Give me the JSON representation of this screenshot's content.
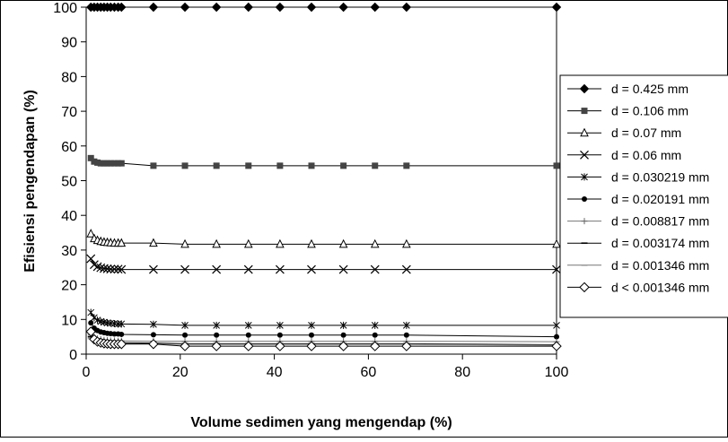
{
  "chart_data": {
    "type": "line",
    "title": "",
    "xlabel": "Volume sedimen yang mengendap (%)",
    "ylabel": "Efisiensi pengendapan (%)",
    "xlim": [
      0,
      100
    ],
    "ylim": [
      0,
      100
    ],
    "xticks": [
      "0",
      "20",
      "40",
      "60",
      "80",
      "100"
    ],
    "yticks": [
      "0",
      "10",
      "20",
      "30",
      "40",
      "50",
      "60",
      "70",
      "80",
      "90",
      "100"
    ],
    "grid": false,
    "legend_position": "right",
    "x": [
      1,
      1.7,
      2.4,
      3.1,
      3.8,
      4.5,
      5.2,
      6.0,
      6.8,
      7.5,
      14.3,
      21.0,
      27.7,
      34.5,
      41.2,
      47.9,
      54.7,
      61.4,
      68.1,
      100
    ],
    "series": [
      {
        "name": "d = 0.425 mm",
        "marker": "diamond-filled",
        "values": [
          100,
          100,
          100,
          100,
          100,
          100,
          100,
          100,
          100,
          100,
          100,
          100,
          100,
          100,
          100,
          100,
          100,
          100,
          100,
          100
        ]
      },
      {
        "name": "d = 0.106 mm",
        "marker": "square-filled",
        "values": [
          56.5,
          55.5,
          55.2,
          55.0,
          55.0,
          55.0,
          55.0,
          55.0,
          55.0,
          55.0,
          54.3,
          54.3,
          54.3,
          54.3,
          54.3,
          54.3,
          54.3,
          54.3,
          54.3,
          54.3
        ]
      },
      {
        "name": "d = 0.07 mm",
        "marker": "triangle-open",
        "values": [
          34.7,
          33.3,
          32.8,
          32.5,
          32.3,
          32.2,
          32.1,
          32.0,
          32.0,
          32.0,
          32.0,
          31.7,
          31.7,
          31.7,
          31.7,
          31.7,
          31.7,
          31.7,
          31.7,
          31.7
        ]
      },
      {
        "name": "d = 0.06 mm",
        "marker": "x",
        "values": [
          27.5,
          25.8,
          25.2,
          24.9,
          24.7,
          24.6,
          24.5,
          24.5,
          24.5,
          24.4,
          24.4,
          24.4,
          24.4,
          24.4,
          24.4,
          24.4,
          24.4,
          24.4,
          24.4,
          24.4
        ]
      },
      {
        "name": "d = 0.030219 mm",
        "marker": "star",
        "values": [
          12.0,
          10.5,
          9.8,
          9.4,
          9.2,
          9.0,
          8.9,
          8.8,
          8.7,
          8.7,
          8.6,
          8.3,
          8.3,
          8.3,
          8.3,
          8.3,
          8.3,
          8.3,
          8.3,
          8.3
        ]
      },
      {
        "name": "d = 0.020191 mm",
        "marker": "circle-filled",
        "values": [
          9.0,
          7.5,
          6.8,
          6.4,
          6.2,
          6.0,
          5.9,
          5.8,
          5.8,
          5.7,
          5.6,
          5.5,
          5.5,
          5.5,
          5.5,
          5.5,
          5.5,
          5.5,
          5.5,
          5.0
        ]
      },
      {
        "name": "d = 0.008817 mm",
        "marker": "plus",
        "values": [
          5.5,
          4.8,
          4.5,
          4.3,
          4.1,
          4.0,
          3.9,
          3.9,
          3.8,
          3.8,
          3.7,
          3.7,
          3.7,
          3.7,
          3.7,
          3.7,
          3.7,
          3.7,
          3.7,
          3.6
        ]
      },
      {
        "name": "d = 0.003174 mm",
        "marker": "dash",
        "values": [
          5.0,
          4.3,
          4.0,
          3.8,
          3.6,
          3.5,
          3.4,
          3.4,
          3.3,
          3.3,
          3.2,
          3.0,
          3.0,
          3.0,
          3.0,
          3.0,
          3.0,
          3.0,
          3.0,
          2.7
        ]
      },
      {
        "name": "d = 0.001346 mm",
        "marker": "dash-gray",
        "values": [
          4.5,
          3.9,
          3.6,
          3.4,
          3.3,
          3.2,
          3.1,
          3.1,
          3.0,
          3.0,
          3.0,
          2.8,
          2.8,
          2.8,
          2.8,
          2.8,
          2.8,
          2.8,
          2.8,
          2.6
        ]
      },
      {
        "name": "d < 0.001346 mm",
        "marker": "diamond-open",
        "values": [
          6.5,
          4.3,
          3.6,
          3.3,
          3.1,
          3.0,
          2.9,
          2.9,
          2.9,
          2.9,
          2.9,
          2.3,
          2.3,
          2.3,
          2.3,
          2.3,
          2.3,
          2.3,
          2.3,
          2.3
        ]
      }
    ]
  }
}
